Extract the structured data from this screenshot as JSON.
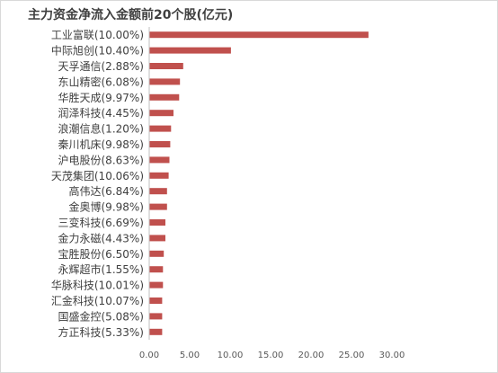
{
  "chart_data": {
    "type": "bar",
    "orientation": "horizontal",
    "title": "主力资金净流入金额前20个股(亿元)",
    "categories": [
      "工业富联(10.00%)",
      "中际旭创(10.40%)",
      "天孚通信(2.88%)",
      "东山精密(6.08%)",
      "华胜天成(9.97%)",
      "润泽科技(4.45%)",
      "浪潮信息(1.20%)",
      "秦川机床(9.98%)",
      "沪电股份(8.63%)",
      "天茂集团(10.06%)",
      "高伟达(6.84%)",
      "金奥博(9.98%)",
      "三变科技(6.69%)",
      "金力永磁(4.43%)",
      "宝胜股份(6.50%)",
      "永辉超市(1.55%)",
      "华脉科技(10.01%)",
      "汇金科技(10.07%)",
      "国盛金控(5.08%)",
      "方正科技(5.33%)"
    ],
    "values": [
      27.1,
      10.1,
      4.2,
      3.8,
      3.7,
      3.0,
      2.7,
      2.6,
      2.5,
      2.4,
      2.2,
      2.2,
      2.0,
      2.0,
      1.8,
      1.7,
      1.7,
      1.6,
      1.6,
      1.6
    ],
    "xlim": [
      0,
      30
    ],
    "x_ticks": [
      "0.00",
      "5.00",
      "10.00",
      "15.00",
      "20.00",
      "25.00",
      "30.00"
    ],
    "xlabel": "",
    "ylabel": "",
    "bar_color": "#c0504d",
    "axis_color": "#bfbfbf",
    "text_color": "#404040",
    "grid": false,
    "legend": "none"
  }
}
